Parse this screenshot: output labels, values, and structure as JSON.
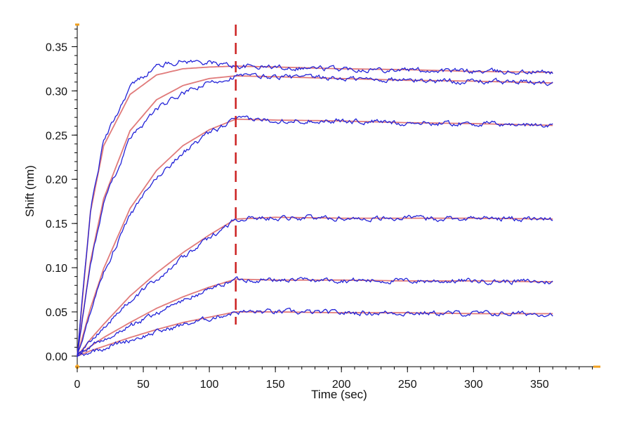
{
  "chart_data": {
    "type": "line",
    "title": "",
    "xlabel": "Time (sec)",
    "ylabel": "Shift (nm)",
    "xlim": [
      0,
      395
    ],
    "ylim": [
      -0.012,
      0.375
    ],
    "x_ticks": [
      0,
      50,
      100,
      150,
      200,
      250,
      300,
      350
    ],
    "y_ticks": [
      0.0,
      0.05,
      0.1,
      0.15,
      0.2,
      0.25,
      0.3,
      0.35
    ],
    "x_tick_labels": [
      "0",
      "50",
      "100",
      "150",
      "200",
      "250",
      "300",
      "350"
    ],
    "y_tick_labels": [
      "0.00",
      "0.05",
      "0.10",
      "0.15",
      "0.20",
      "0.25",
      "0.30",
      "0.35"
    ],
    "association_end_time": 120,
    "colors": {
      "data_trace": "#2323d8",
      "fit_curve": "#e07a7a",
      "dissociation_marker": "#cc2222",
      "axis_end_marker": "#f0a020",
      "axis": "#000000"
    },
    "series": [
      {
        "values": [
          [
            0,
            0.0
          ],
          [
            10,
            0.163
          ],
          [
            20,
            0.238
          ],
          [
            40,
            0.296
          ],
          [
            60,
            0.318
          ],
          [
            80,
            0.325
          ],
          [
            100,
            0.327
          ],
          [
            120,
            0.328
          ],
          [
            150,
            0.327
          ],
          [
            200,
            0.325
          ],
          [
            250,
            0.324
          ],
          [
            300,
            0.322
          ],
          [
            360,
            0.321
          ]
        ]
      },
      {
        "values": [
          [
            0,
            0.0
          ],
          [
            10,
            0.107
          ],
          [
            20,
            0.178
          ],
          [
            40,
            0.255
          ],
          [
            60,
            0.29
          ],
          [
            80,
            0.306
          ],
          [
            100,
            0.314
          ],
          [
            120,
            0.317
          ],
          [
            150,
            0.316
          ],
          [
            200,
            0.314
          ],
          [
            250,
            0.312
          ],
          [
            300,
            0.311
          ],
          [
            360,
            0.309
          ]
        ]
      },
      {
        "values": [
          [
            0,
            0.0
          ],
          [
            10,
            0.054
          ],
          [
            20,
            0.099
          ],
          [
            40,
            0.167
          ],
          [
            60,
            0.21
          ],
          [
            80,
            0.238
          ],
          [
            100,
            0.256
          ],
          [
            120,
            0.268
          ],
          [
            150,
            0.267
          ],
          [
            200,
            0.266
          ],
          [
            250,
            0.264
          ],
          [
            300,
            0.263
          ],
          [
            360,
            0.261
          ]
        ]
      },
      {
        "values": [
          [
            0,
            0.0
          ],
          [
            10,
            0.019
          ],
          [
            20,
            0.036
          ],
          [
            40,
            0.068
          ],
          [
            60,
            0.094
          ],
          [
            80,
            0.117
          ],
          [
            100,
            0.137
          ],
          [
            120,
            0.155
          ],
          [
            150,
            0.157
          ],
          [
            200,
            0.156
          ],
          [
            250,
            0.156
          ],
          [
            300,
            0.156
          ],
          [
            360,
            0.155
          ]
        ]
      },
      {
        "values": [
          [
            0,
            0.0
          ],
          [
            10,
            0.011
          ],
          [
            20,
            0.021
          ],
          [
            40,
            0.038
          ],
          [
            60,
            0.054
          ],
          [
            80,
            0.067
          ],
          [
            100,
            0.078
          ],
          [
            120,
            0.087
          ],
          [
            150,
            0.086
          ],
          [
            200,
            0.086
          ],
          [
            250,
            0.085
          ],
          [
            300,
            0.085
          ],
          [
            360,
            0.084
          ]
        ]
      },
      {
        "values": [
          [
            0,
            0.0
          ],
          [
            10,
            0.006
          ],
          [
            20,
            0.011
          ],
          [
            40,
            0.021
          ],
          [
            60,
            0.03
          ],
          [
            80,
            0.038
          ],
          [
            100,
            0.044
          ],
          [
            120,
            0.05
          ],
          [
            150,
            0.05
          ],
          [
            200,
            0.049
          ],
          [
            250,
            0.049
          ],
          [
            300,
            0.048
          ],
          [
            360,
            0.048
          ]
        ]
      }
    ],
    "grid": false,
    "legend": "none"
  }
}
